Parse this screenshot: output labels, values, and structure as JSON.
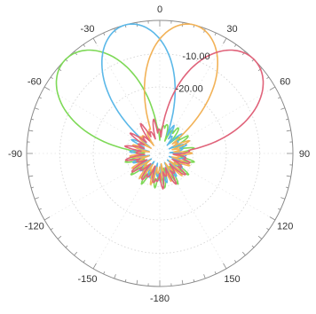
{
  "chart_data": {
    "type": "line",
    "coordinate_system": "polar",
    "angle_zero": "top",
    "angle_direction": "clockwise",
    "angular_ticks": [
      {
        "angle": 0,
        "label": "0"
      },
      {
        "angle": 30,
        "label": "30"
      },
      {
        "angle": 60,
        "label": "60"
      },
      {
        "angle": 90,
        "label": "90"
      },
      {
        "angle": 120,
        "label": "120"
      },
      {
        "angle": 150,
        "label": "150"
      },
      {
        "angle": 180,
        "label": "-180"
      },
      {
        "angle": -150,
        "label": "-150"
      },
      {
        "angle": -120,
        "label": "-120"
      },
      {
        "angle": -90,
        "label": "-90"
      },
      {
        "angle": -60,
        "label": "-60"
      },
      {
        "angle": -30,
        "label": "-30"
      }
    ],
    "radial_range_db": [
      -40,
      0
    ],
    "radial_ticks": [
      {
        "value": -10,
        "label": "-10.00"
      },
      {
        "value": -20,
        "label": "-20.00"
      }
    ],
    "grid": true,
    "series": [
      {
        "color": "#7ed957",
        "main_lobe_deg": -45,
        "beamwidth_deg": 24,
        "sidelobe_db": -32
      },
      {
        "color": "#5bb8e8",
        "main_lobe_deg": -15,
        "beamwidth_deg": 22,
        "sidelobe_db": -33
      },
      {
        "color": "#f2b257",
        "main_lobe_deg": 15,
        "beamwidth_deg": 22,
        "sidelobe_db": -33
      },
      {
        "color": "#e0637a",
        "main_lobe_deg": 45,
        "beamwidth_deg": 24,
        "sidelobe_db": -32
      }
    ]
  }
}
